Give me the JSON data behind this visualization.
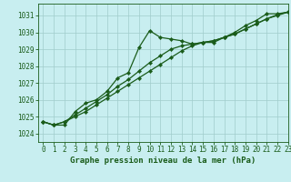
{
  "title": "Graphe pression niveau de la mer (hPa)",
  "bg_color": "#c8eef0",
  "grid_color": "#a0cccc",
  "line_color": "#1a5c1a",
  "xlim": [
    -0.5,
    23
  ],
  "ylim": [
    1023.5,
    1031.7
  ],
  "yticks": [
    1024,
    1025,
    1026,
    1027,
    1028,
    1029,
    1030,
    1031
  ],
  "xticks": [
    0,
    1,
    2,
    3,
    4,
    5,
    6,
    7,
    8,
    9,
    10,
    11,
    12,
    13,
    14,
    15,
    16,
    17,
    18,
    19,
    20,
    21,
    22,
    23
  ],
  "series": [
    {
      "x": [
        0,
        1,
        2,
        3,
        4,
        5,
        6,
        7,
        8,
        9,
        10,
        11,
        12,
        13,
        14,
        15,
        16,
        17,
        18,
        19,
        20,
        21,
        22,
        23
      ],
      "y": [
        1024.7,
        1024.5,
        1024.5,
        1025.3,
        1025.8,
        1026.0,
        1026.5,
        1027.3,
        1027.6,
        1029.1,
        1030.1,
        1029.7,
        1029.6,
        1029.5,
        1029.3,
        1029.4,
        1029.4,
        1029.7,
        1030.0,
        1030.4,
        1030.7,
        1031.1,
        1031.1,
        1031.2
      ]
    },
    {
      "x": [
        0,
        1,
        2,
        3,
        4,
        5,
        6,
        7,
        8,
        9,
        10,
        11,
        12,
        13,
        14,
        15,
        16,
        17,
        18,
        19,
        20,
        21,
        22,
        23
      ],
      "y": [
        1024.7,
        1024.5,
        1024.7,
        1025.1,
        1025.5,
        1025.9,
        1026.3,
        1026.8,
        1027.2,
        1027.7,
        1028.2,
        1028.6,
        1029.0,
        1029.2,
        1029.3,
        1029.4,
        1029.5,
        1029.7,
        1029.9,
        1030.2,
        1030.5,
        1030.8,
        1031.05,
        1031.2
      ]
    },
    {
      "x": [
        0,
        1,
        2,
        3,
        4,
        5,
        6,
        7,
        8,
        9,
        10,
        11,
        12,
        13,
        14,
        15,
        16,
        17,
        18,
        19,
        20,
        21,
        22,
        23
      ],
      "y": [
        1024.7,
        1024.5,
        1024.7,
        1025.0,
        1025.3,
        1025.7,
        1026.1,
        1026.5,
        1026.9,
        1027.3,
        1027.7,
        1028.1,
        1028.5,
        1028.9,
        1029.2,
        1029.4,
        1029.5,
        1029.7,
        1029.9,
        1030.2,
        1030.5,
        1030.8,
        1031.0,
        1031.2
      ]
    }
  ],
  "tick_fontsize": 5.5,
  "title_fontsize": 6.5,
  "title_fontweight": "bold",
  "marker": "D",
  "markersize": 2.2,
  "linewidth": 0.9
}
